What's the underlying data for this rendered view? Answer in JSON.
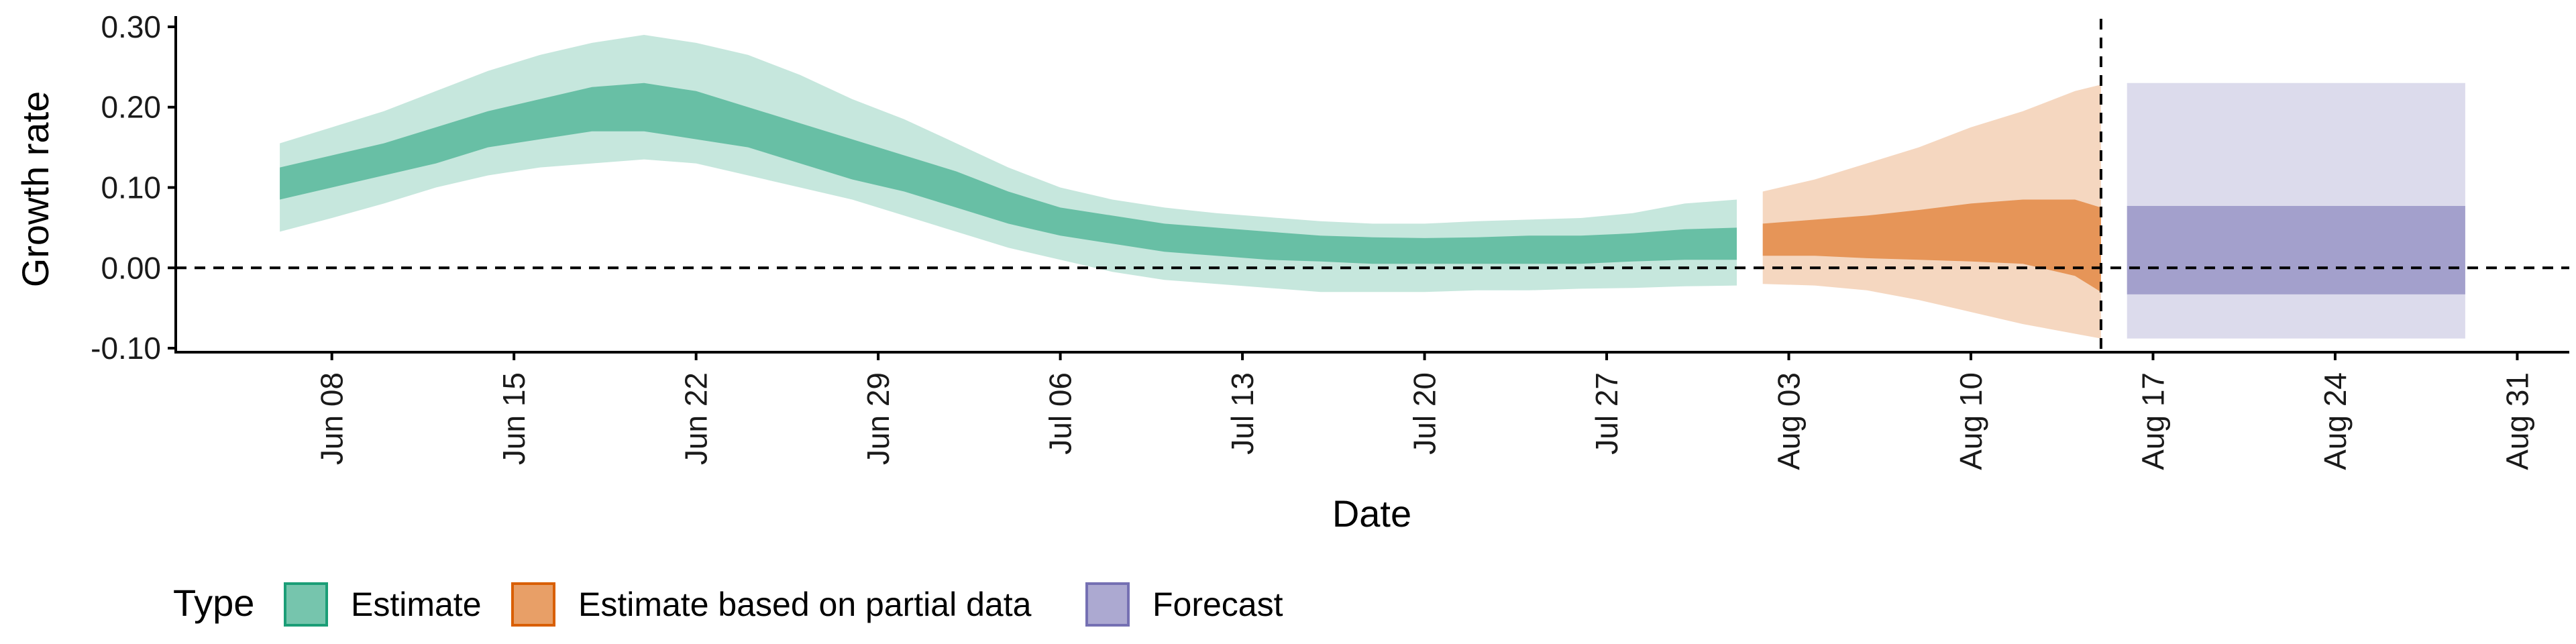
{
  "chart_data": {
    "type": "area",
    "xlabel": "Date",
    "ylabel": "Growth rate",
    "x_ticks": [
      {
        "date": "2020-06-08",
        "label": "Jun 08"
      },
      {
        "date": "2020-06-15",
        "label": "Jun 15"
      },
      {
        "date": "2020-06-22",
        "label": "Jun 22"
      },
      {
        "date": "2020-06-29",
        "label": "Jun 29"
      },
      {
        "date": "2020-07-06",
        "label": "Jul 06"
      },
      {
        "date": "2020-07-13",
        "label": "Jul 13"
      },
      {
        "date": "2020-07-20",
        "label": "Jul 20"
      },
      {
        "date": "2020-07-27",
        "label": "Jul 27"
      },
      {
        "date": "2020-08-03",
        "label": "Aug 03"
      },
      {
        "date": "2020-08-10",
        "label": "Aug 10"
      },
      {
        "date": "2020-08-17",
        "label": "Aug 17"
      },
      {
        "date": "2020-08-24",
        "label": "Aug 24"
      },
      {
        "date": "2020-08-31",
        "label": "Aug 31"
      }
    ],
    "y_ticks": [
      {
        "value": 0.3,
        "label": "0.30"
      },
      {
        "value": 0.2,
        "label": "0.20"
      },
      {
        "value": 0.1,
        "label": "0.10"
      },
      {
        "value": 0.0,
        "label": "0.00"
      },
      {
        "value": -0.1,
        "label": "-0.10"
      }
    ],
    "xlim": [
      "2020-06-02",
      "2020-09-02"
    ],
    "ylim": [
      -0.105,
      0.31
    ],
    "grid": false,
    "reference_lines": {
      "hline": 0.0,
      "vline_date": "2020-08-15"
    },
    "legend": {
      "title": "Type",
      "position": "bottom-left",
      "entries": [
        {
          "label": "Estimate",
          "color": "#1b9e77"
        },
        {
          "label": "Estimate based on partial data",
          "color": "#d95f02"
        },
        {
          "label": "Forecast",
          "color": "#7570b3"
        }
      ]
    },
    "series": [
      {
        "name": "Estimate",
        "color": "#1b9e77",
        "points": [
          {
            "date": "2020-06-06",
            "lower90": 0.045,
            "lower50": 0.085,
            "upper50": 0.125,
            "upper90": 0.155
          },
          {
            "date": "2020-06-08",
            "lower90": 0.062,
            "lower50": 0.1,
            "upper50": 0.14,
            "upper90": 0.175
          },
          {
            "date": "2020-06-10",
            "lower90": 0.08,
            "lower50": 0.115,
            "upper50": 0.155,
            "upper90": 0.195
          },
          {
            "date": "2020-06-12",
            "lower90": 0.1,
            "lower50": 0.13,
            "upper50": 0.175,
            "upper90": 0.22
          },
          {
            "date": "2020-06-14",
            "lower90": 0.115,
            "lower50": 0.15,
            "upper50": 0.195,
            "upper90": 0.245
          },
          {
            "date": "2020-06-16",
            "lower90": 0.125,
            "lower50": 0.16,
            "upper50": 0.21,
            "upper90": 0.265
          },
          {
            "date": "2020-06-18",
            "lower90": 0.13,
            "lower50": 0.17,
            "upper50": 0.225,
            "upper90": 0.28
          },
          {
            "date": "2020-06-20",
            "lower90": 0.135,
            "lower50": 0.17,
            "upper50": 0.23,
            "upper90": 0.29
          },
          {
            "date": "2020-06-22",
            "lower90": 0.13,
            "lower50": 0.16,
            "upper50": 0.22,
            "upper90": 0.28
          },
          {
            "date": "2020-06-24",
            "lower90": 0.115,
            "lower50": 0.15,
            "upper50": 0.2,
            "upper90": 0.265
          },
          {
            "date": "2020-06-26",
            "lower90": 0.1,
            "lower50": 0.13,
            "upper50": 0.18,
            "upper90": 0.24
          },
          {
            "date": "2020-06-28",
            "lower90": 0.085,
            "lower50": 0.11,
            "upper50": 0.16,
            "upper90": 0.21
          },
          {
            "date": "2020-06-30",
            "lower90": 0.065,
            "lower50": 0.095,
            "upper50": 0.14,
            "upper90": 0.185
          },
          {
            "date": "2020-07-02",
            "lower90": 0.045,
            "lower50": 0.075,
            "upper50": 0.12,
            "upper90": 0.155
          },
          {
            "date": "2020-07-04",
            "lower90": 0.025,
            "lower50": 0.055,
            "upper50": 0.095,
            "upper90": 0.125
          },
          {
            "date": "2020-07-06",
            "lower90": 0.01,
            "lower50": 0.04,
            "upper50": 0.075,
            "upper90": 0.1
          },
          {
            "date": "2020-07-08",
            "lower90": -0.005,
            "lower50": 0.03,
            "upper50": 0.065,
            "upper90": 0.085
          },
          {
            "date": "2020-07-10",
            "lower90": -0.015,
            "lower50": 0.02,
            "upper50": 0.055,
            "upper90": 0.075
          },
          {
            "date": "2020-07-12",
            "lower90": -0.02,
            "lower50": 0.015,
            "upper50": 0.05,
            "upper90": 0.068
          },
          {
            "date": "2020-07-14",
            "lower90": -0.025,
            "lower50": 0.01,
            "upper50": 0.045,
            "upper90": 0.063
          },
          {
            "date": "2020-07-16",
            "lower90": -0.03,
            "lower50": 0.008,
            "upper50": 0.04,
            "upper90": 0.058
          },
          {
            "date": "2020-07-18",
            "lower90": -0.03,
            "lower50": 0.005,
            "upper50": 0.038,
            "upper90": 0.055
          },
          {
            "date": "2020-07-20",
            "lower90": -0.03,
            "lower50": 0.005,
            "upper50": 0.037,
            "upper90": 0.055
          },
          {
            "date": "2020-07-22",
            "lower90": -0.028,
            "lower50": 0.005,
            "upper50": 0.038,
            "upper90": 0.058
          },
          {
            "date": "2020-07-24",
            "lower90": -0.028,
            "lower50": 0.005,
            "upper50": 0.04,
            "upper90": 0.06
          },
          {
            "date": "2020-07-26",
            "lower90": -0.026,
            "lower50": 0.005,
            "upper50": 0.04,
            "upper90": 0.062
          },
          {
            "date": "2020-07-28",
            "lower90": -0.025,
            "lower50": 0.008,
            "upper50": 0.043,
            "upper90": 0.068
          },
          {
            "date": "2020-07-30",
            "lower90": -0.023,
            "lower50": 0.01,
            "upper50": 0.048,
            "upper90": 0.08
          },
          {
            "date": "2020-08-01",
            "lower90": -0.022,
            "lower50": 0.01,
            "upper50": 0.05,
            "upper90": 0.085
          }
        ]
      },
      {
        "name": "Estimate based on partial data",
        "color": "#d95f02",
        "points": [
          {
            "date": "2020-08-02",
            "lower90": -0.02,
            "lower50": 0.015,
            "upper50": 0.055,
            "upper90": 0.095
          },
          {
            "date": "2020-08-04",
            "lower90": -0.022,
            "lower50": 0.015,
            "upper50": 0.06,
            "upper90": 0.11
          },
          {
            "date": "2020-08-06",
            "lower90": -0.028,
            "lower50": 0.012,
            "upper50": 0.065,
            "upper90": 0.13
          },
          {
            "date": "2020-08-08",
            "lower90": -0.04,
            "lower50": 0.01,
            "upper50": 0.072,
            "upper90": 0.15
          },
          {
            "date": "2020-08-10",
            "lower90": -0.055,
            "lower50": 0.008,
            "upper50": 0.08,
            "upper90": 0.175
          },
          {
            "date": "2020-08-12",
            "lower90": -0.07,
            "lower50": 0.005,
            "upper50": 0.085,
            "upper90": 0.195
          },
          {
            "date": "2020-08-14",
            "lower90": -0.082,
            "lower50": -0.01,
            "upper50": 0.085,
            "upper90": 0.22
          },
          {
            "date": "2020-08-15",
            "lower90": -0.088,
            "lower50": -0.03,
            "upper50": 0.075,
            "upper90": 0.228
          }
        ]
      },
      {
        "name": "Forecast",
        "color": "#7570b3",
        "points": [
          {
            "date": "2020-08-16",
            "lower90": -0.088,
            "lower50": -0.033,
            "upper50": 0.077,
            "upper90": 0.23
          },
          {
            "date": "2020-08-29",
            "lower90": -0.088,
            "lower50": -0.033,
            "upper50": 0.077,
            "upper90": 0.23
          }
        ]
      }
    ]
  }
}
